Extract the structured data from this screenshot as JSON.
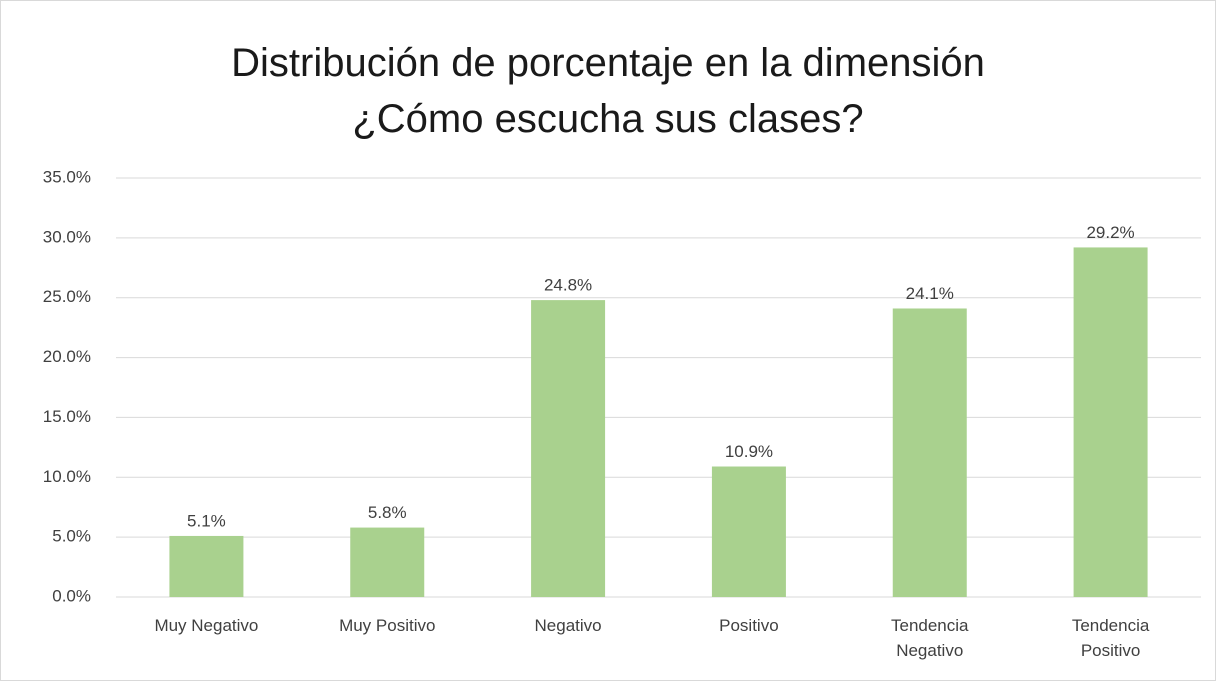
{
  "chart_data": {
    "type": "bar",
    "title": "Distribución de porcentaje en la dimensión\n¿Cómo escucha sus clases?",
    "categories": [
      "Muy Negativo",
      "Muy Positivo",
      "Negativo",
      "Positivo",
      "Tendencia\nNegativo",
      "Tendencia\nPositivo"
    ],
    "values": [
      5.1,
      5.8,
      24.8,
      10.9,
      24.1,
      29.2
    ],
    "value_labels": [
      "5.1%",
      "5.8%",
      "24.8%",
      "10.9%",
      "24.1%",
      "29.2%"
    ],
    "color": "#a9d18e",
    "ylim": [
      0,
      35
    ],
    "yticks": [
      {
        "value": 0,
        "label": "0.0%"
      },
      {
        "value": 5,
        "label": "5.0%"
      },
      {
        "value": 10,
        "label": "10.0%"
      },
      {
        "value": 15,
        "label": "15.0%"
      },
      {
        "value": 20,
        "label": "20.0%"
      },
      {
        "value": 25,
        "label": "25.0%"
      },
      {
        "value": 30,
        "label": "30.0%"
      },
      {
        "value": 35,
        "label": "35.0%"
      }
    ],
    "grid": true
  }
}
